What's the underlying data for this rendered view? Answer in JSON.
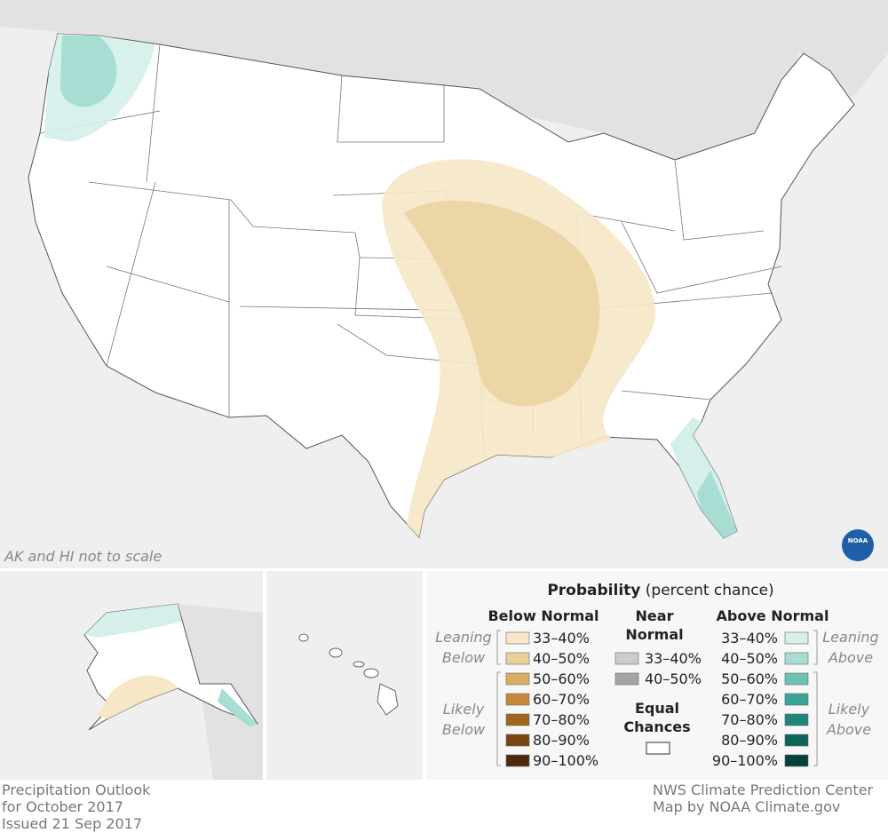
{
  "map": {
    "scale_note": "AK and HI not to scale",
    "logo": "NOAA"
  },
  "legend": {
    "title": "Probability",
    "subtitle": "(percent chance)",
    "below": {
      "heading": "Below Normal",
      "leaning_label": [
        "Leaning",
        "Below"
      ],
      "likely_label": [
        "Likely",
        "Below"
      ],
      "items": [
        {
          "label": "33–40%",
          "color": "#f6e8c6"
        },
        {
          "label": "40–50%",
          "color": "#ead19c"
        },
        {
          "label": "50–60%",
          "color": "#d9ae62"
        },
        {
          "label": "60–70%",
          "color": "#c48a3a"
        },
        {
          "label": "70–80%",
          "color": "#a3641c"
        },
        {
          "label": "80–90%",
          "color": "#7c4410"
        },
        {
          "label": "90–100%",
          "color": "#4f2a0a"
        }
      ]
    },
    "near": {
      "heading": [
        "Near",
        "Normal"
      ],
      "items": [
        {
          "label": "33–40%",
          "color": "#cccccc"
        },
        {
          "label": "40–50%",
          "color": "#a5a5a5"
        }
      ]
    },
    "equal": {
      "heading": [
        "Equal",
        "Chances"
      ],
      "color": "#ffffff"
    },
    "above": {
      "heading": "Above Normal",
      "leaning_label": [
        "Leaning",
        "Above"
      ],
      "likely_label": [
        "Likely",
        "Above"
      ],
      "items": [
        {
          "label": "33–40%",
          "color": "#d5efea"
        },
        {
          "label": "40–50%",
          "color": "#a7ddd3"
        },
        {
          "label": "50–60%",
          "color": "#6cc3b4"
        },
        {
          "label": "60–70%",
          "color": "#3aa597"
        },
        {
          "label": "70–80%",
          "color": "#1e8577"
        },
        {
          "label": "80–90%",
          "color": "#0e6457"
        },
        {
          "label": "90–100%",
          "color": "#05413a"
        }
      ]
    }
  },
  "footer": {
    "left": [
      "Precipitation Outlook",
      "for October 2017",
      "Issued 21 Sep 2017"
    ],
    "right": [
      "NWS Climate Prediction Center",
      "Map by NOAA Climate.gov"
    ]
  }
}
